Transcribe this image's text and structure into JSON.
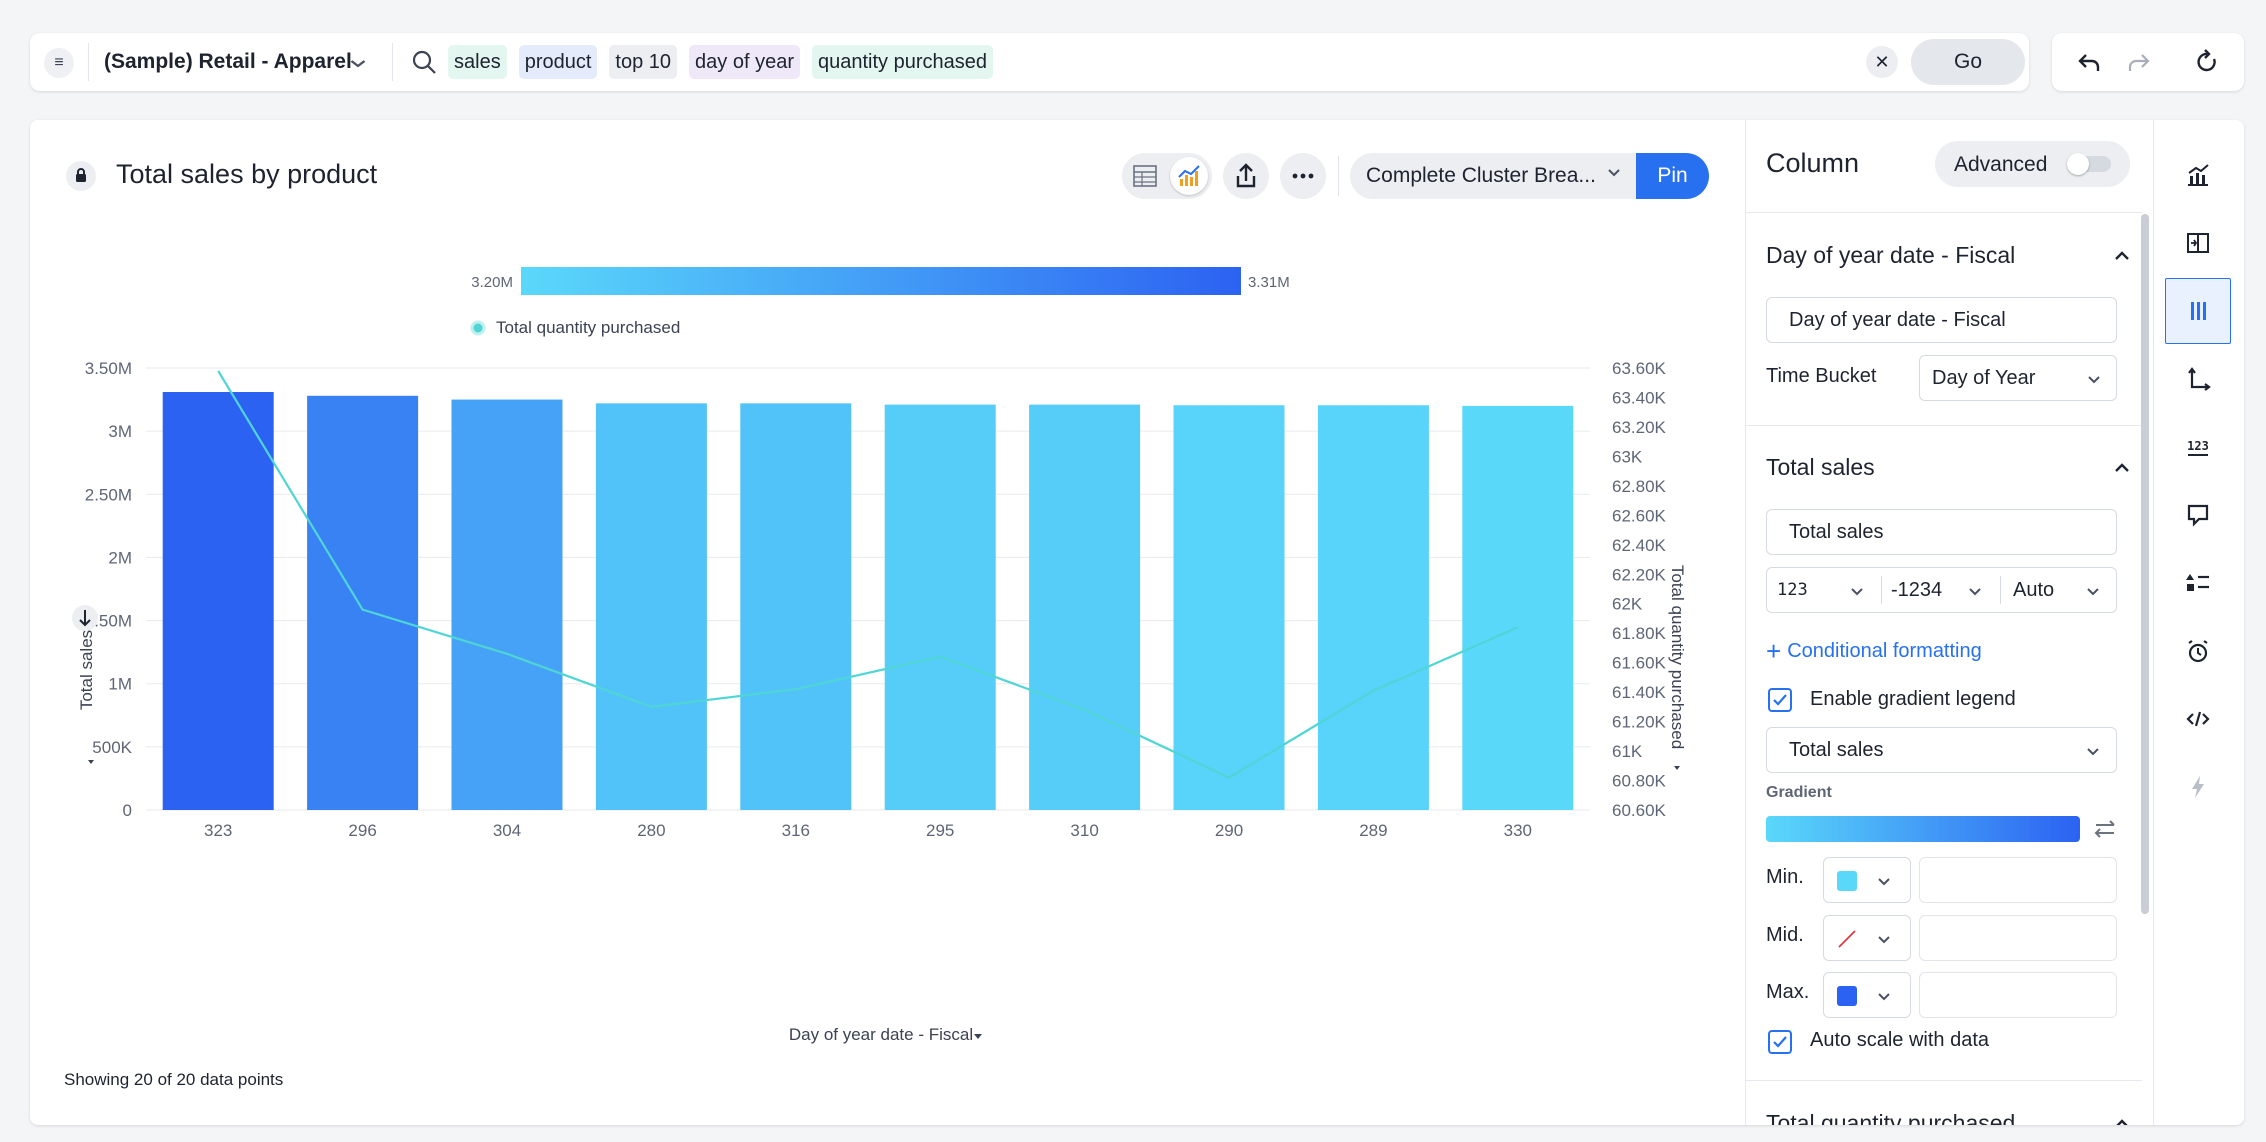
{
  "search_bar": {
    "source_name": "(Sample) Retail - Apparel",
    "tokens": [
      "sales",
      "product",
      "top 10",
      "day of year",
      "quantity purchased"
    ],
    "go_label": "Go"
  },
  "answer": {
    "title": "Total sales by product",
    "liveboard_select": "Complete Cluster Brea...",
    "pin_label": "Pin",
    "footer_note": "Showing 20 of 20 data points"
  },
  "chart_data": {
    "type": "bar+line",
    "title": "",
    "xlabel": "Day of year date - Fiscal",
    "ylabel": "Total sales",
    "y2label": "Total quantity purchased",
    "categories": [
      "323",
      "296",
      "304",
      "280",
      "316",
      "295",
      "310",
      "290",
      "289",
      "330"
    ],
    "series": [
      {
        "name": "Total sales",
        "kind": "bar",
        "values": [
          3310000,
          3280000,
          3250000,
          3220000,
          3220000,
          3210000,
          3210000,
          3205000,
          3205000,
          3200000
        ]
      },
      {
        "name": "Total quantity purchased",
        "kind": "line",
        "axis": "right",
        "values": [
          63580,
          61960,
          61660,
          61300,
          61420,
          61640,
          61280,
          60820,
          61410,
          61840
        ]
      }
    ],
    "ylim": [
      0,
      3500000
    ],
    "y_ticks": [
      "0",
      "500K",
      "1M",
      "1.50M",
      "2M",
      "2.50M",
      "3M",
      "3.50M"
    ],
    "y2lim": [
      60600,
      63600
    ],
    "y2_ticks": [
      "60.60K",
      "60.80K",
      "61K",
      "61.20K",
      "61.40K",
      "61.60K",
      "61.80K",
      "62K",
      "62.20K",
      "62.40K",
      "62.60K",
      "62.80K",
      "63K",
      "63.20K",
      "63.40K",
      "63.60K"
    ],
    "gradient_legend": {
      "min_label": "3.20M",
      "max_label": "3.31M",
      "min_value": 3200000,
      "max_value": 3310000
    },
    "legend": [
      "Total quantity purchased"
    ],
    "legend_position": "top",
    "colors": {
      "bar_min": "#5ad8fa",
      "bar_max": "#2c62f2",
      "line": "#4fd5d6",
      "grid": "#e8eaee"
    }
  },
  "settings_panel": {
    "title": "Column",
    "advanced_label": "Advanced",
    "advanced_on": false,
    "sections": {
      "day_of_year": {
        "title": "Day of year date - Fiscal",
        "name_value": "Day of year date - Fiscal",
        "time_bucket_label": "Time Bucket",
        "time_bucket_value": "Day of Year"
      },
      "total_sales": {
        "title": "Total sales",
        "name_value": "Total sales",
        "number_format": "123",
        "negative_format": "-1234",
        "units": "Auto",
        "conditional_formatting": "Conditional formatting",
        "enable_gradient_legend_label": "Enable gradient legend",
        "enable_gradient_legend": true,
        "gradient_column": "Total sales",
        "gradient_label": "Gradient",
        "min_label": "Min.",
        "mid_label": "Mid.",
        "max_label": "Max.",
        "min_color": "#5ad8fa",
        "max_color": "#2c62f2",
        "auto_scale_label": "Auto scale with data",
        "auto_scale": true
      },
      "total_quantity": {
        "title": "Total quantity purchased"
      }
    }
  },
  "rail_icons": [
    "chart-type-icon",
    "swap-columns-icon",
    "columns-icon",
    "axes-icon",
    "number-format-icon",
    "tooltip-icon",
    "legend-list-icon",
    "alert-clock-icon",
    "embed-code-icon",
    "spotiq-bolt-icon"
  ]
}
